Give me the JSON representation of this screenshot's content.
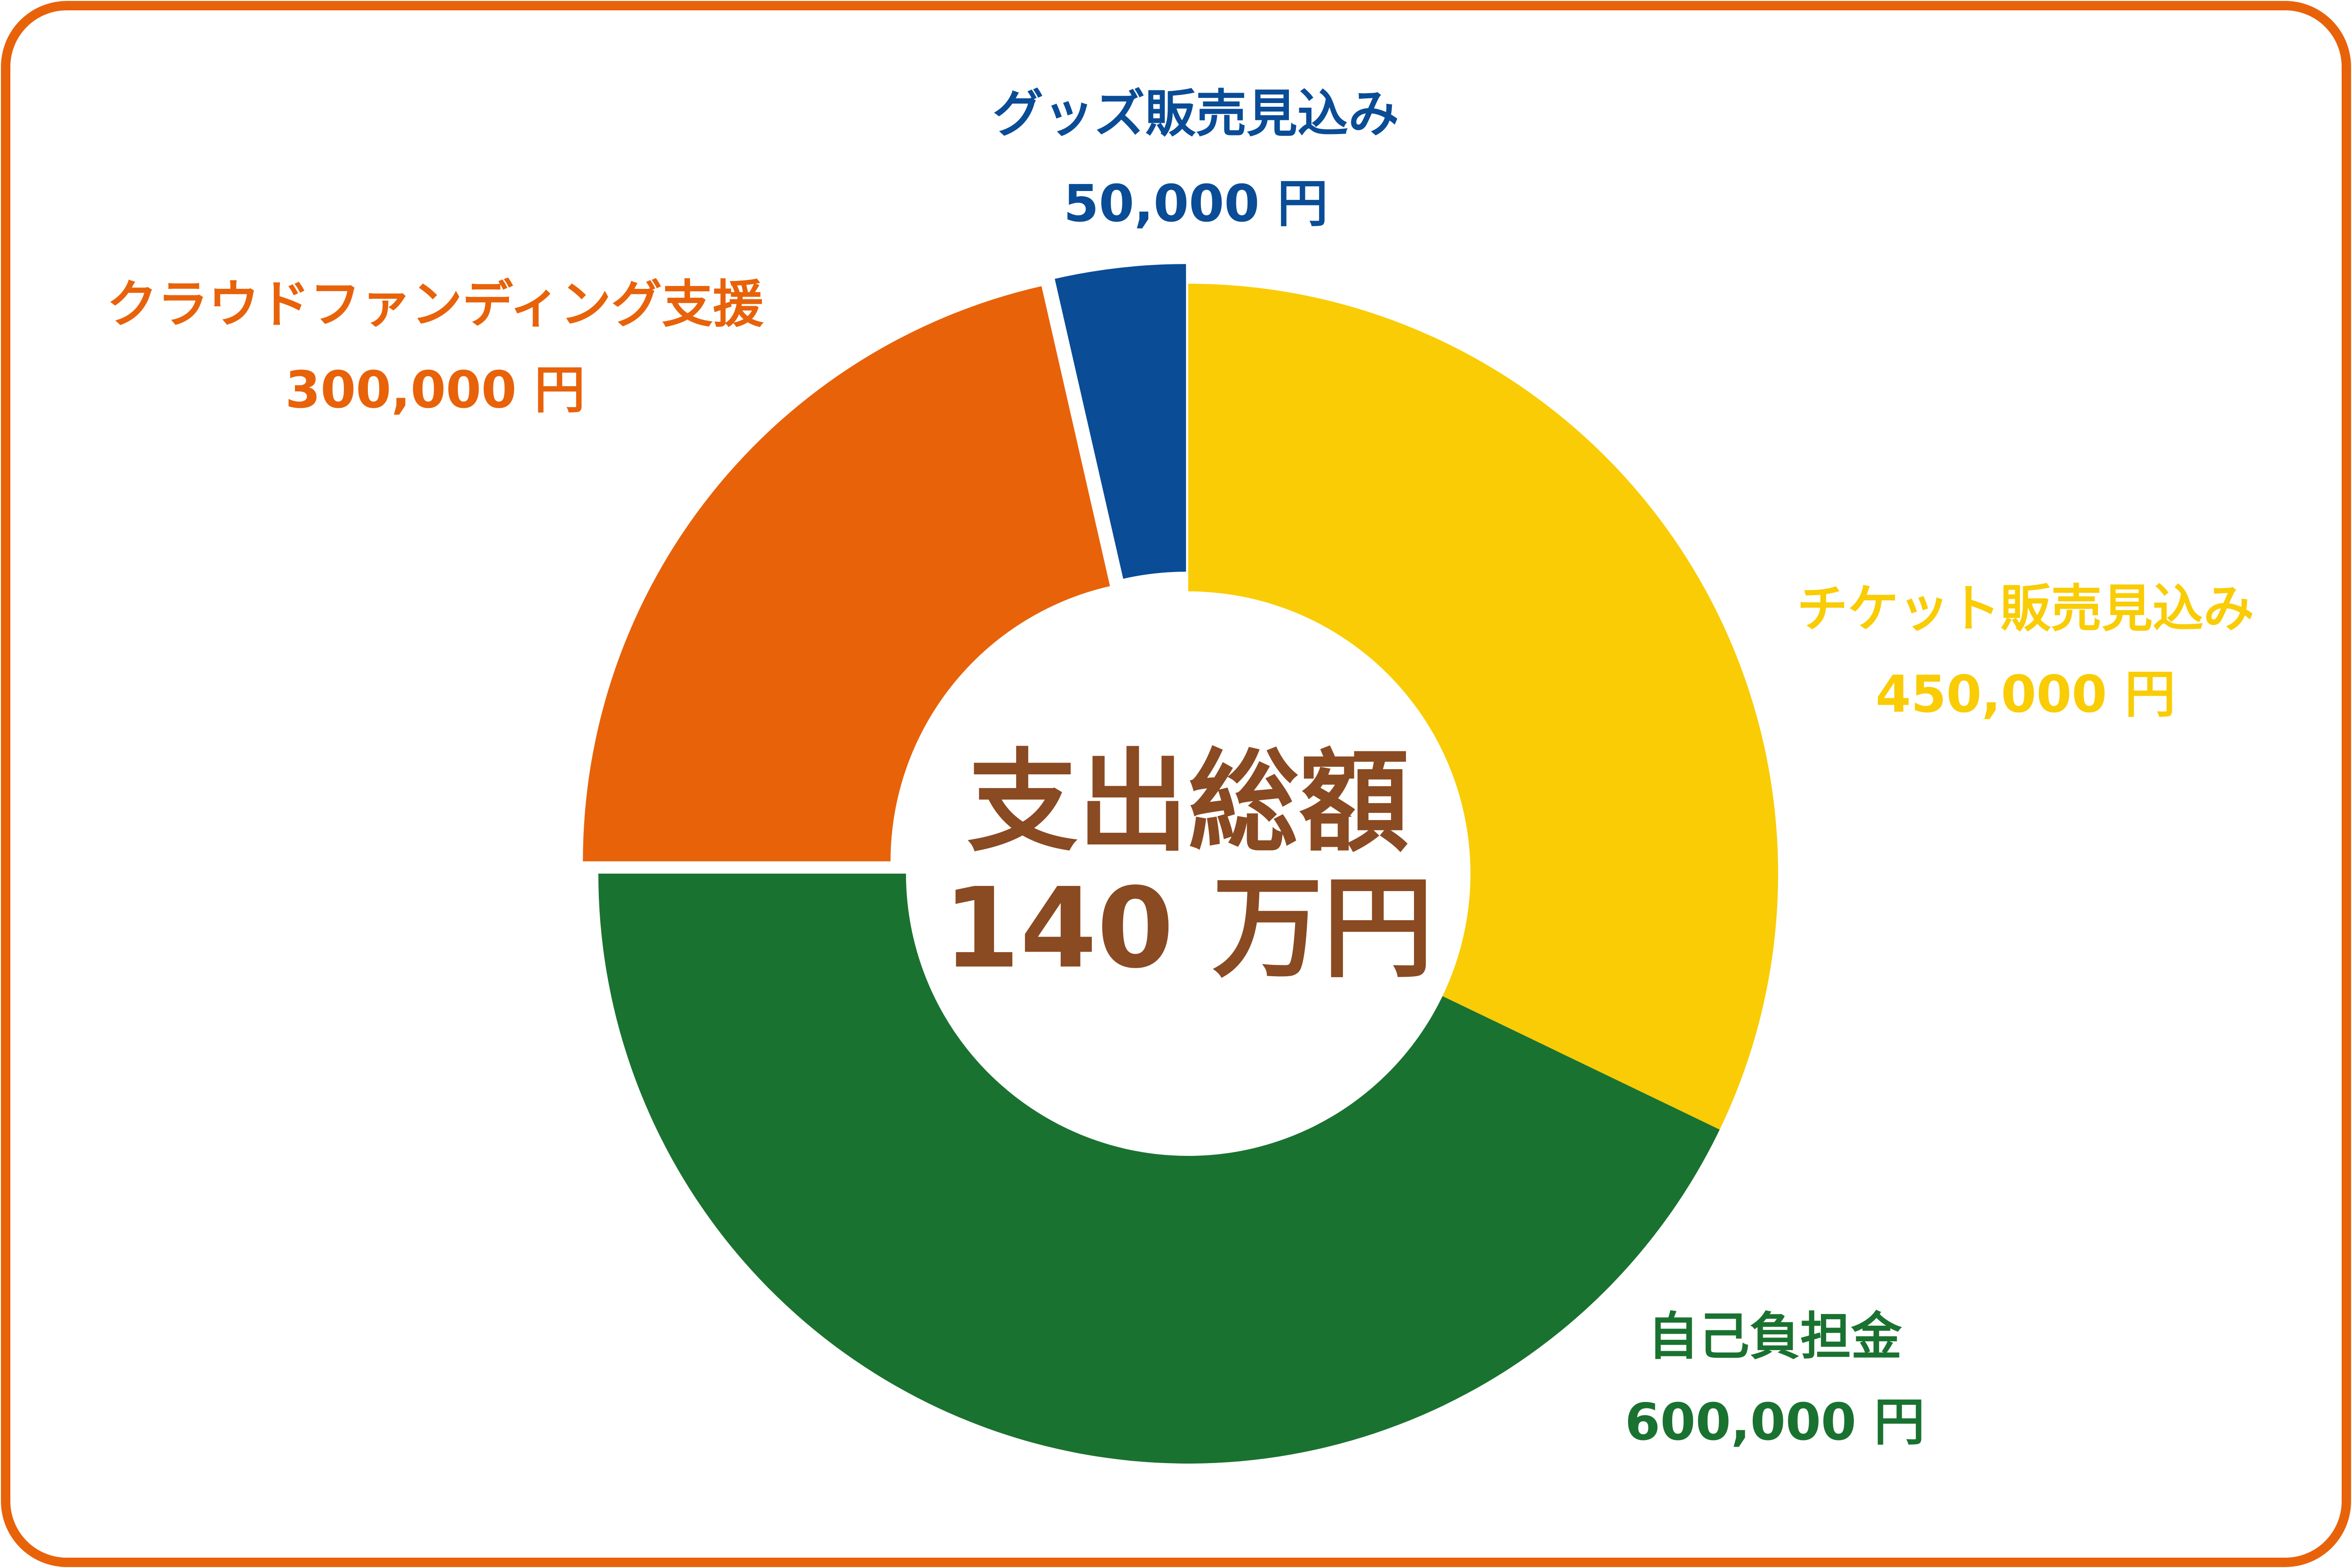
{
  "chart_data": {
    "type": "donut",
    "center_title": "支出総額",
    "center_value": "140 万円",
    "categories": [
      "チケット販売見込み",
      "自己負担金",
      "クラウドファンディング支援",
      "グッズ販売見込み"
    ],
    "values": [
      450000,
      600000,
      300000,
      50000
    ],
    "value_labels": [
      "450,000 円",
      "600,000 円",
      "300,000 円",
      "50,000 円"
    ],
    "colors": [
      "#f9cc05",
      "#1a7230",
      "#e8620a",
      "#0a4c96"
    ],
    "explode": [
      false,
      false,
      true,
      true
    ]
  }
}
